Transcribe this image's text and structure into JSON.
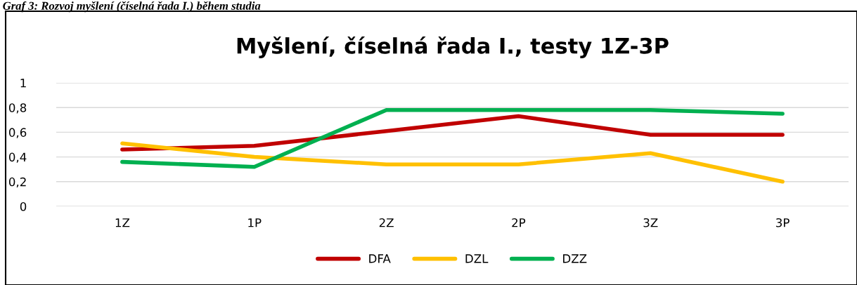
{
  "chart_data": {
    "type": "line",
    "title": "Myšlení, číselná řada I., testy 1Z-3P",
    "annotations": [
      "Graf 3: Rozvoj myšlení (číselná řada I.) během studia"
    ],
    "categories": [
      "1Z",
      "1P",
      "2Z",
      "2P",
      "3Z",
      "3P"
    ],
    "series": [
      {
        "name": "DFA",
        "color": "#c00000",
        "values": [
          0.46,
          0.49,
          0.61,
          0.73,
          0.58,
          0.58
        ]
      },
      {
        "name": "DZL",
        "color": "#ffc000",
        "values": [
          0.51,
          0.4,
          0.34,
          0.34,
          0.43,
          0.2
        ]
      },
      {
        "name": "DZZ",
        "color": "#00b050",
        "values": [
          0.36,
          0.32,
          0.78,
          0.78,
          0.78,
          0.75
        ]
      }
    ],
    "ylim": [
      0,
      1
    ],
    "yticks": [
      {
        "value": 0,
        "label": "0"
      },
      {
        "value": 0.2,
        "label": "0,2"
      },
      {
        "value": 0.4,
        "label": "0,4"
      },
      {
        "value": 0.6,
        "label": "0,6"
      },
      {
        "value": 0.8,
        "label": "0,8"
      },
      {
        "value": 1,
        "label": "1"
      }
    ],
    "grid": "y",
    "legend": "bottom",
    "marker": "none",
    "line_style": "solid"
  }
}
